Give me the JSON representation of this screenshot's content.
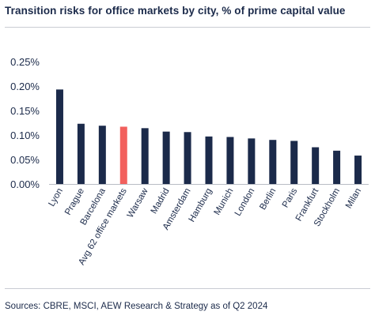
{
  "title": "Transition risks for office markets by city, % of prime capital value",
  "source": "Sources: CBRE, MSCI, AEW Research & Strategy as of Q2 2024",
  "colors": {
    "bar": "#1b2a4a",
    "highlight": "#f2605d",
    "text": "#1b2a4a"
  },
  "chart_data": {
    "type": "bar",
    "categories": [
      "Lyon",
      "Prague",
      "Barcelona",
      "Avg 62 office markets",
      "Warsaw",
      "Madrid",
      "Amsterdam",
      "Hamburg",
      "Munich",
      "London",
      "Berlin",
      "Paris",
      "Frankfurt",
      "Stockholm",
      "Milan"
    ],
    "values": [
      0.193,
      0.123,
      0.119,
      0.117,
      0.114,
      0.107,
      0.106,
      0.097,
      0.096,
      0.093,
      0.09,
      0.088,
      0.075,
      0.068,
      0.058
    ],
    "highlight": "Avg 62 office markets",
    "yticks": [
      "0.00%",
      "0.05%",
      "0.10%",
      "0.15%",
      "0.20%",
      "0.25%"
    ],
    "ylim": [
      0,
      0.25
    ],
    "title": "Transition risks for office markets by city, % of prime capital value",
    "xlabel": "",
    "ylabel": "",
    "grid": false,
    "legend": "none"
  }
}
